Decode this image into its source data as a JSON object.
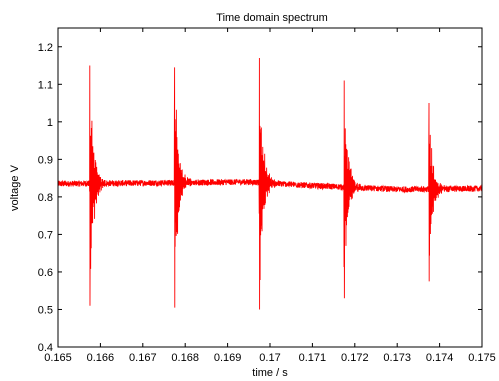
{
  "chart_data": {
    "type": "line",
    "title": "Time domain spectrum",
    "xlabel": "time / s",
    "ylabel": "voltage V",
    "xlim": [
      0.165,
      0.175
    ],
    "ylim": [
      0.4,
      1.25
    ],
    "x_ticks": [
      0.165,
      0.166,
      0.167,
      0.168,
      0.169,
      0.17,
      0.171,
      0.172,
      0.173,
      0.174,
      0.175
    ],
    "x_tick_labels": [
      "0.165",
      "0.166",
      "0.167",
      "0.168",
      "0.169",
      "0.17",
      "0.171",
      "0.172",
      "0.173",
      "0.174",
      "0.175"
    ],
    "y_ticks": [
      0.4,
      0.5,
      0.6,
      0.7,
      0.8,
      0.9,
      1.0,
      1.1,
      1.2
    ],
    "y_tick_labels": [
      "0.4",
      "0.5",
      "0.6",
      "0.7",
      "0.8",
      "0.9",
      "1",
      "1.1",
      "1.2"
    ],
    "grid": false,
    "line_color": "#ff0000",
    "series": [
      {
        "baseline": [
          [
            0.165,
            0.835
          ],
          [
            0.168,
            0.838
          ],
          [
            0.1695,
            0.84
          ],
          [
            0.171,
            0.83
          ],
          [
            0.173,
            0.82
          ],
          [
            0.175,
            0.822
          ]
        ],
        "noise_amplitude": 0.008,
        "bursts": [
          {
            "t": 0.16575,
            "max": 1.15,
            "min": 0.51
          },
          {
            "t": 0.16775,
            "max": 1.145,
            "min": 0.505
          },
          {
            "t": 0.16975,
            "max": 1.17,
            "min": 0.5
          },
          {
            "t": 0.17175,
            "max": 1.11,
            "min": 0.53
          },
          {
            "t": 0.17375,
            "max": 1.05,
            "min": 0.575
          }
        ]
      }
    ]
  }
}
